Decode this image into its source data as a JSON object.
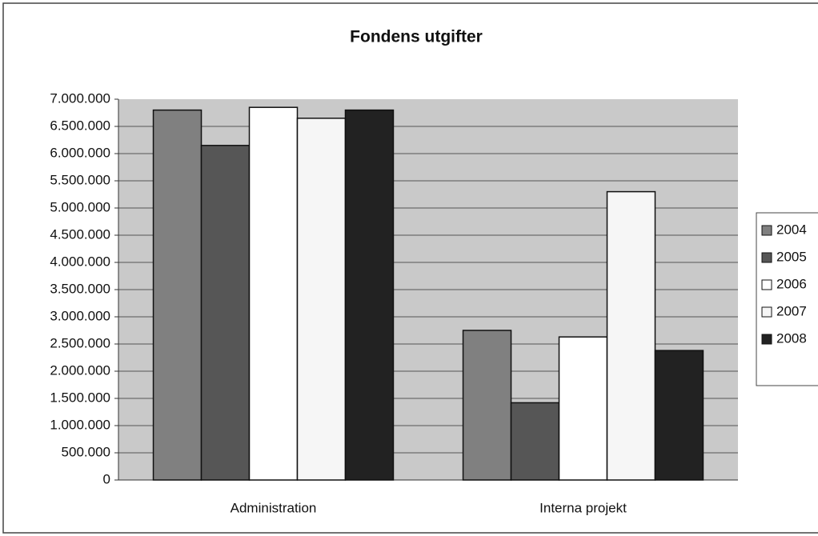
{
  "chart_data": {
    "type": "bar",
    "title": "Fondens utgifter",
    "categories": [
      "Administration",
      "Interna projekt"
    ],
    "series": [
      {
        "name": "2004",
        "color": "#808080",
        "values": [
          6800000,
          2750000
        ]
      },
      {
        "name": "2005",
        "color": "#565656",
        "values": [
          6150000,
          1420000
        ]
      },
      {
        "name": "2006",
        "color": "#ffffff",
        "values": [
          6850000,
          2630000
        ]
      },
      {
        "name": "2007",
        "color": "#f6f6f6",
        "values": [
          6650000,
          5300000
        ]
      },
      {
        "name": "2008",
        "color": "#222222",
        "values": [
          6800000,
          2380000
        ]
      }
    ],
    "ylim": [
      0,
      7000000
    ],
    "yticks": [
      0,
      {
        "value": 500000,
        "label": "500.000"
      },
      {
        "value": 1000000,
        "label": "1.000.000"
      },
      {
        "value": 1500000,
        "label": "1.500.000"
      },
      {
        "value": 2000000,
        "label": "2.000.000"
      },
      {
        "value": 2500000,
        "label": "2.500.000"
      },
      {
        "value": 3000000,
        "label": "3.000.000"
      },
      {
        "value": 3500000,
        "label": "3.500.000"
      },
      {
        "value": 4000000,
        "label": "4.000.000"
      },
      {
        "value": 4500000,
        "label": "4.500.000"
      },
      {
        "value": 5000000,
        "label": "5.000.000"
      },
      {
        "value": 5500000,
        "label": "5.500.000"
      },
      {
        "value": 6000000,
        "label": "6.000.000"
      },
      {
        "value": 6500000,
        "label": "6.500.000"
      },
      {
        "value": 7000000,
        "label": "7.000.000"
      }
    ],
    "grid": true,
    "legend": "right"
  }
}
